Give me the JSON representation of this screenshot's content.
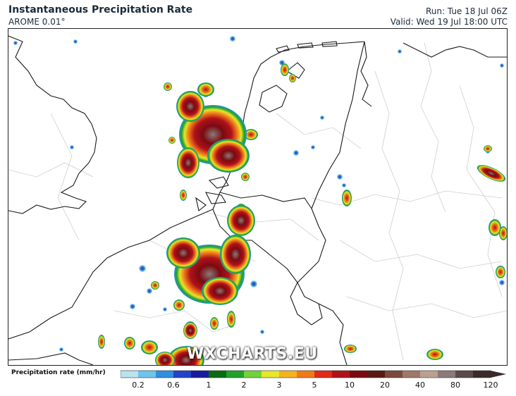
{
  "header": {
    "title": "Instantaneous Precipitation Rate",
    "model": "AROME 0.01°",
    "run": "Run: Tue 18 Jul 06Z",
    "valid": "Valid: Wed 19 Jul 18:00 UTC"
  },
  "watermark": "WXCHARTS.EU",
  "legend": {
    "label": "Precipitation rate (mm/hr)",
    "ticks": [
      "0.2",
      "0.6",
      "1",
      "2",
      "3",
      "5",
      "10",
      "20",
      "40",
      "80",
      "120"
    ],
    "colors": [
      "#b9e4ee",
      "#6fc4ea",
      "#2f8fe0",
      "#2442c8",
      "#1a1aa0",
      "#0a6a12",
      "#1fa228",
      "#6fd23a",
      "#e6e62a",
      "#f5b21f",
      "#f07a1a",
      "#e02a1a",
      "#b0121a",
      "#7a0a10",
      "#5a1a14",
      "#7a4a3a",
      "#a0786a",
      "#bba090",
      "#8a7a78",
      "#5a4a4a",
      "#3a2a2a"
    ]
  },
  "colors": {
    "border": "#222222",
    "country_lines": "#1a1a1a",
    "region_lines": "#c8c8c8",
    "text": "#1b2b3b"
  }
}
